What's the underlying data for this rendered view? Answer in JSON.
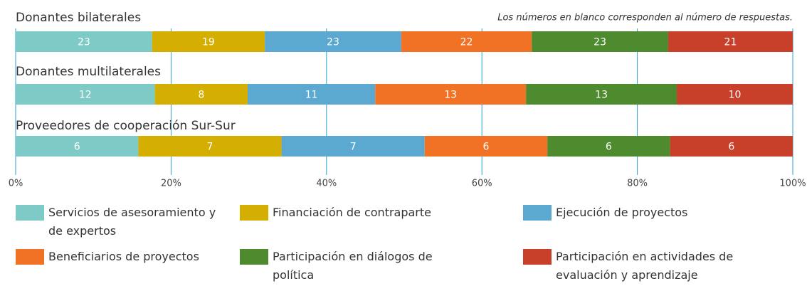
{
  "chart_data": {
    "type": "stacked_bar_100",
    "annotation": "Los números en blanco corresponden al número de respuestas.",
    "categories": [
      "Donantes bilaterales",
      "Donantes multilaterales",
      "Proveedores de cooperación Sur-Sur"
    ],
    "series": [
      {
        "name": "Servicios de asesoramiento y de expertos",
        "color": "#7ecac6",
        "values": [
          23,
          12,
          6
        ]
      },
      {
        "name": "Financiación de contraparte",
        "color": "#d4ae00",
        "values": [
          19,
          8,
          7
        ]
      },
      {
        "name": "Ejecución de proyectos",
        "color": "#5ba8d0",
        "values": [
          23,
          11,
          7
        ]
      },
      {
        "name": "Beneficiarios de proyectos",
        "color": "#f27225",
        "values": [
          22,
          13,
          6
        ]
      },
      {
        "name": "Participación en diálogos de política",
        "color": "#4e8a2e",
        "values": [
          23,
          13,
          6
        ]
      },
      {
        "name": "Participación en actividades de evaluación y aprendizaje",
        "color": "#c8402a",
        "values": [
          21,
          10,
          6
        ]
      }
    ],
    "xlim": [
      0,
      100
    ],
    "xticks": [
      {
        "value": 0,
        "label": "0%"
      },
      {
        "value": 20,
        "label": "20%"
      },
      {
        "value": 40,
        "label": "40%"
      },
      {
        "value": 60,
        "label": "60%"
      },
      {
        "value": 80,
        "label": "80%"
      },
      {
        "value": 100,
        "label": "100%"
      }
    ],
    "grid": true,
    "grid_color": "#2aa3d0"
  }
}
